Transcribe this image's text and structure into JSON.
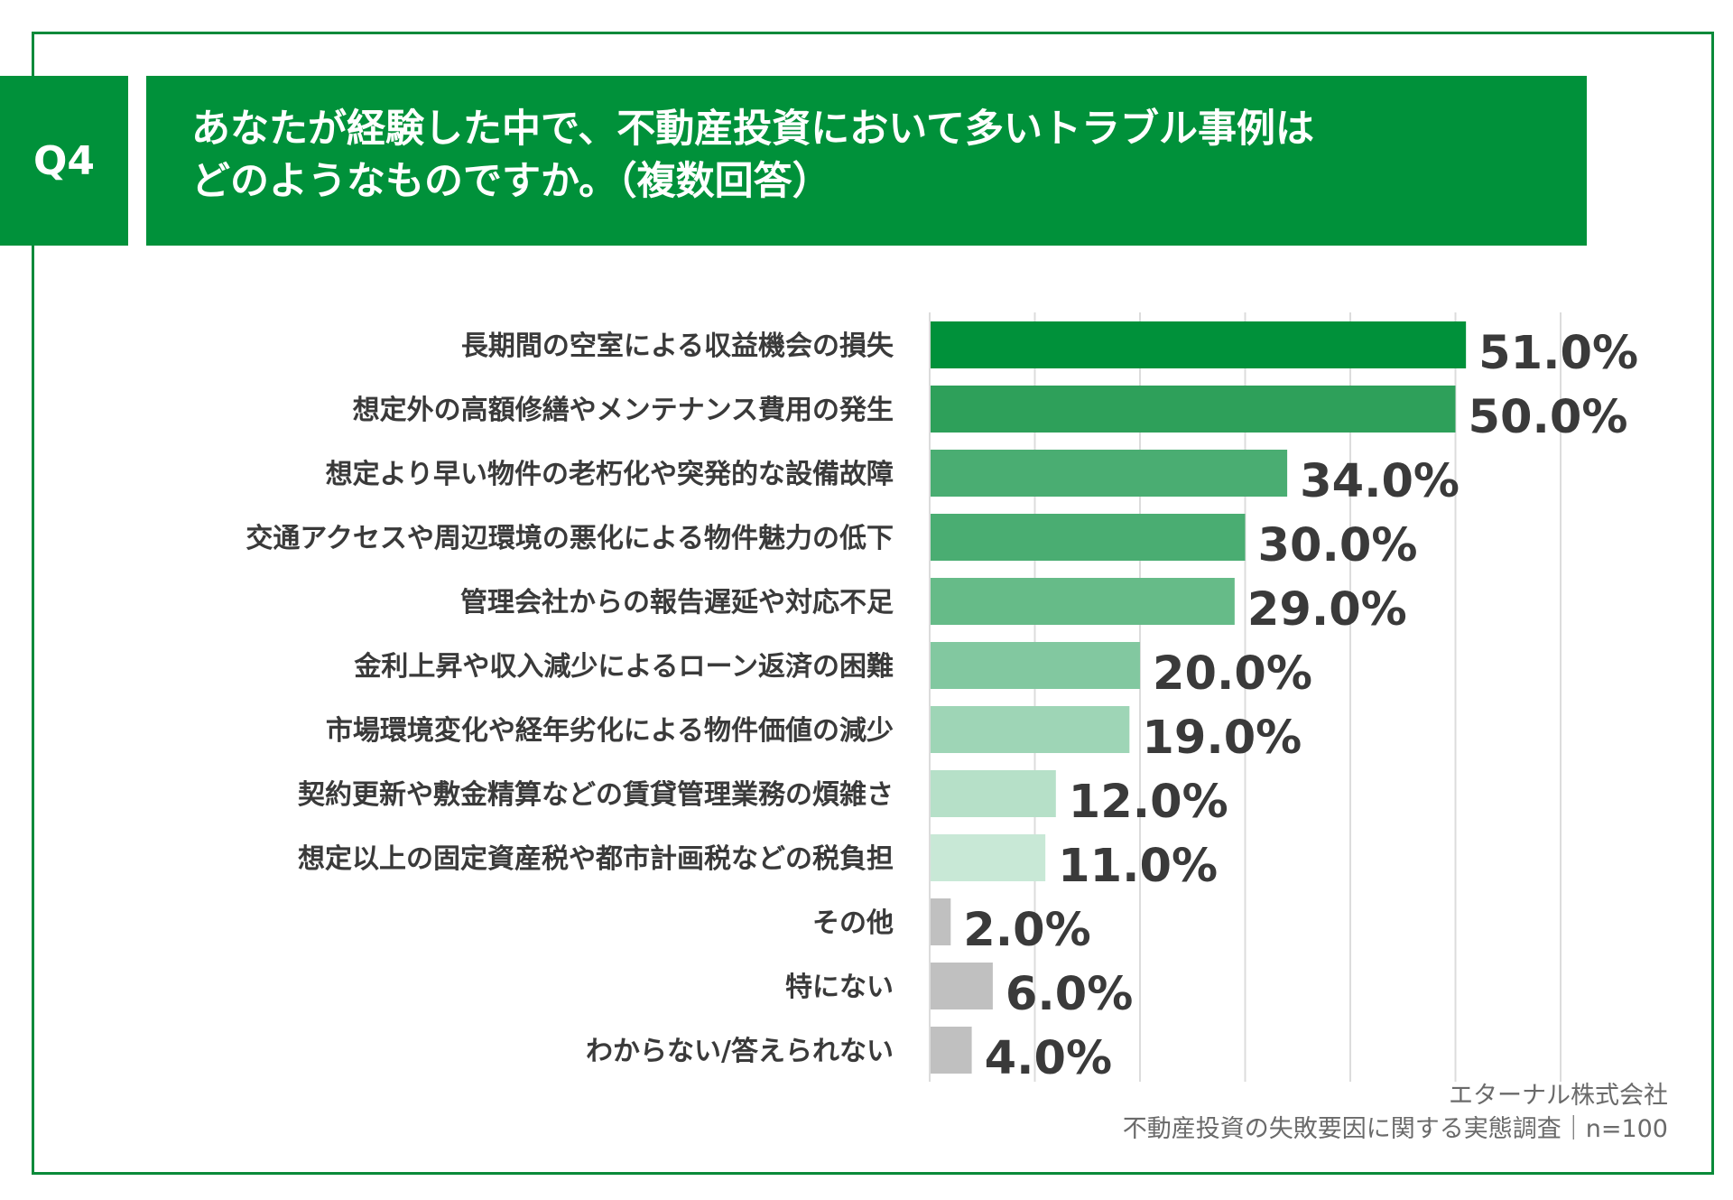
{
  "header": {
    "q_label": "Q4",
    "title_line1": "あなたが経験した中で、不動産投資において多いトラブル事例は",
    "title_line2": "どのようなものですか。（複数回答）"
  },
  "source": {
    "company": "エターナル株式会社",
    "survey": "不動産投資の失敗要因に関する実態調査｜n=100"
  },
  "colors": {
    "frame": "#0a8a3a",
    "header_bg": "#00913a",
    "other_bars": "#c0c0c0"
  },
  "chart_data": {
    "type": "bar",
    "orientation": "horizontal",
    "unit": "%",
    "xlim": [
      0,
      60
    ],
    "grid": true,
    "categories": [
      "長期間の空室による収益機会の損失",
      "想定外の高額修繕やメンテナンス費用の発生",
      "想定より早い物件の老朽化や突発的な設備故障",
      "交通アクセスや周辺環境の悪化による物件魅力の低下",
      "管理会社からの報告遅延や対応不足",
      "金利上昇や収入減少によるローン返済の困難",
      "市場環境変化や経年劣化による物件価値の減少",
      "契約更新や敷金精算などの賃貸管理業務の煩雑さ",
      "想定以上の固定資産税や都市計画税などの税負担",
      "その他",
      "特にない",
      "わからない/答えられない"
    ],
    "values": [
      51.0,
      50.0,
      34.0,
      30.0,
      29.0,
      20.0,
      19.0,
      12.0,
      11.0,
      2.0,
      6.0,
      4.0
    ],
    "value_labels": [
      "51.0%",
      "50.0%",
      "34.0%",
      "30.0%",
      "29.0%",
      "20.0%",
      "19.0%",
      "12.0%",
      "11.0%",
      "2.0%",
      "6.0%",
      "4.0%"
    ],
    "bar_colors": [
      "#00913a",
      "#2ea05a",
      "#4aad72",
      "#4aad72",
      "#66bb88",
      "#82c8a0",
      "#9ed5b6",
      "#b6e0c8",
      "#c8e8d6",
      "#c0c0c0",
      "#c0c0c0",
      "#c0c0c0"
    ]
  }
}
